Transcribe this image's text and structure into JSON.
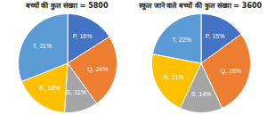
{
  "chart_data": [
    {
      "type": "pie",
      "title": "बच्चों की कुल संख्या = 5800",
      "categories": [
        "P",
        "Q",
        "S",
        "R",
        "T"
      ],
      "values": [
        16,
        24,
        11,
        18,
        31
      ],
      "value_labels": [
        "P, 16%",
        "Q, 24%",
        "S, 11%",
        "R, 18%",
        "T, 31%"
      ],
      "colors": [
        "#4472c4",
        "#ed7d31",
        "#a5a5a5",
        "#ffc000",
        "#5b9bd5"
      ],
      "data_labels": true
    },
    {
      "type": "pie",
      "title": "स्कूल जाने वाले बच्चों की कुल संख्या = 3600",
      "categories": [
        "P",
        "Q",
        "S",
        "R",
        "T"
      ],
      "values": [
        15,
        28,
        14,
        21,
        22
      ],
      "value_labels": [
        "P, 15%",
        "Q, 28%",
        "S, 14%",
        "R, 21%",
        "T, 22%"
      ],
      "colors": [
        "#4472c4",
        "#ed7d31",
        "#a5a5a5",
        "#ffc000",
        "#5b9bd5"
      ],
      "data_labels": true
    }
  ]
}
